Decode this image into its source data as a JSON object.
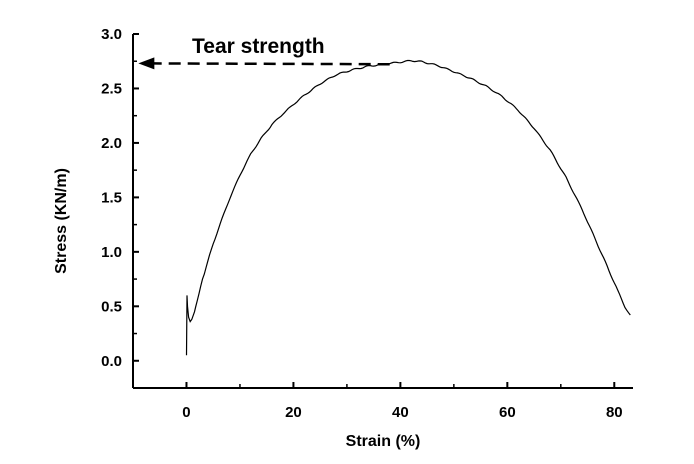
{
  "chart_data": {
    "type": "line",
    "xlabel": "Strain (%)",
    "ylabel": "Stress (KN/m)",
    "xlim": [
      -10,
      83.5
    ],
    "ylim": [
      -0.25,
      3.0
    ],
    "x_ticks": [
      "0",
      "20",
      "40",
      "60",
      "80"
    ],
    "y_ticks": [
      "0.0",
      "0.5",
      "1.0",
      "1.5",
      "2.0",
      "2.5",
      "3.0"
    ],
    "grid": false,
    "series": [
      {
        "x": [
          0,
          0.1,
          0.2,
          0.4,
          0.7,
          1.0,
          1.5,
          2,
          3,
          4,
          5,
          6,
          8,
          10,
          12,
          14,
          16,
          18,
          20,
          22,
          25,
          28,
          31,
          34,
          37,
          40,
          42,
          44,
          47,
          50,
          53,
          56,
          59,
          62,
          65,
          68,
          71,
          74,
          77,
          80,
          82,
          83
        ],
        "y": [
          0.05,
          0.6,
          0.5,
          0.4,
          0.36,
          0.38,
          0.45,
          0.55,
          0.75,
          0.92,
          1.08,
          1.22,
          1.48,
          1.7,
          1.89,
          2.04,
          2.17,
          2.27,
          2.36,
          2.44,
          2.54,
          2.62,
          2.67,
          2.71,
          2.73,
          2.74,
          2.75,
          2.74,
          2.71,
          2.66,
          2.6,
          2.52,
          2.42,
          2.3,
          2.14,
          1.94,
          1.68,
          1.38,
          1.05,
          0.72,
          0.5,
          0.42
        ]
      }
    ],
    "annotations": [
      {
        "text": "Tear strength",
        "arrow_to": {
          "x": -9,
          "y": 2.73
        },
        "arrow_from": {
          "x": 38,
          "y": 2.75
        },
        "style": "dashed-arrow"
      }
    ]
  }
}
